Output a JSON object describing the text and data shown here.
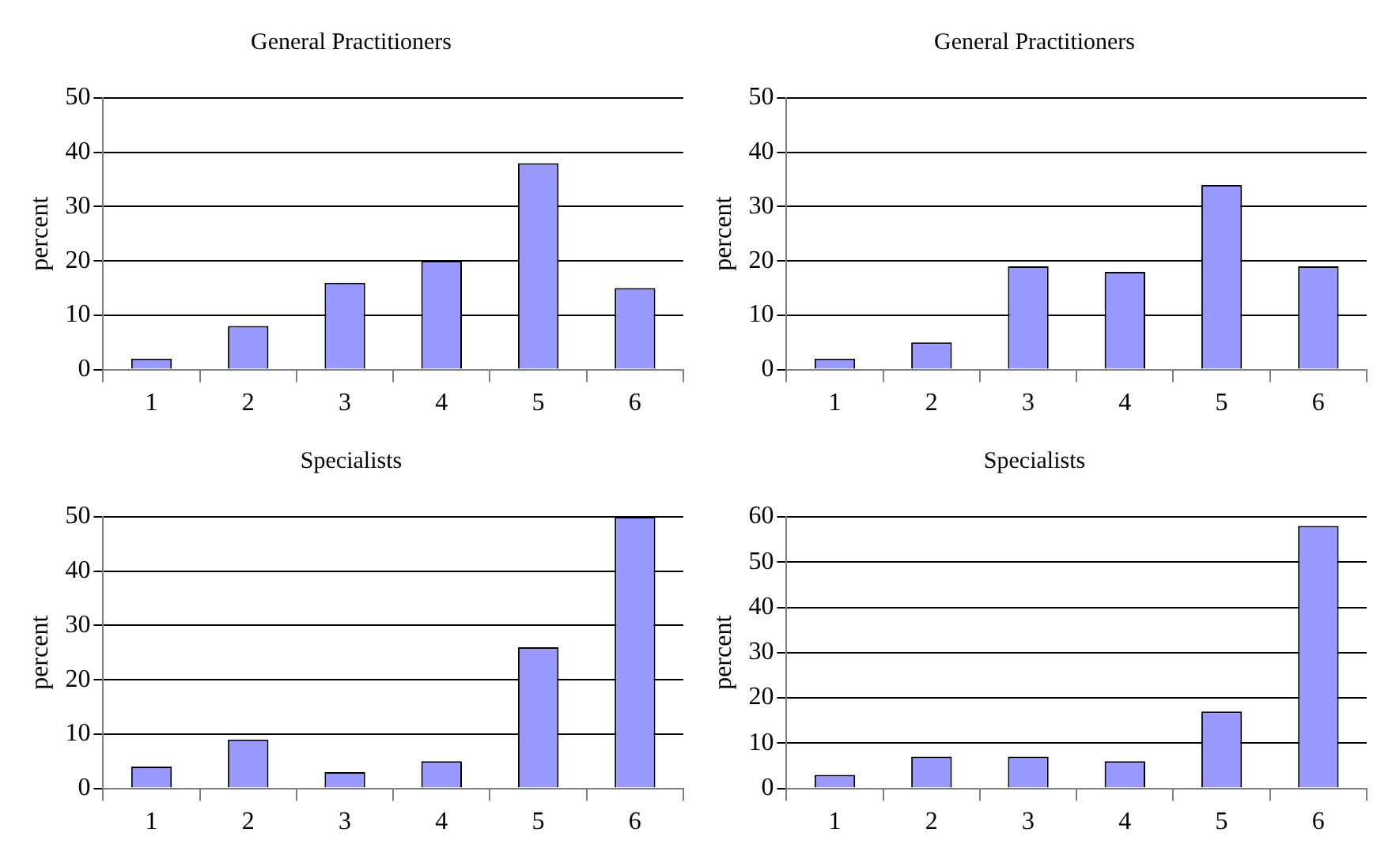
{
  "chart_data": [
    {
      "type": "bar",
      "title": "General Practitioners",
      "ylabel": "percent",
      "categories": [
        "1",
        "2",
        "3",
        "4",
        "5",
        "6"
      ],
      "values": [
        2,
        8,
        16,
        20,
        38,
        15
      ],
      "color": "#9999ff",
      "ylim": [
        0,
        50
      ],
      "yticks": [
        0,
        10,
        20,
        30,
        40,
        50
      ],
      "grid": "y",
      "legend": false
    },
    {
      "type": "bar",
      "title": "General Practitioners",
      "ylabel": "percent",
      "categories": [
        "1",
        "2",
        "3",
        "4",
        "5",
        "6"
      ],
      "values": [
        2,
        5,
        19,
        18,
        34,
        19
      ],
      "color": "#9999ff",
      "ylim": [
        0,
        50
      ],
      "yticks": [
        0,
        10,
        20,
        30,
        40,
        50
      ],
      "grid": "y",
      "legend": false
    },
    {
      "type": "bar",
      "title": "Specialists",
      "ylabel": "percent",
      "categories": [
        "1",
        "2",
        "3",
        "4",
        "5",
        "6"
      ],
      "values": [
        4,
        9,
        3,
        5,
        26,
        50
      ],
      "color": "#9999ff",
      "ylim": [
        0,
        50
      ],
      "yticks": [
        0,
        10,
        20,
        30,
        40,
        50
      ],
      "grid": "y",
      "legend": false
    },
    {
      "type": "bar",
      "title": "Specialists",
      "ylabel": "percent",
      "categories": [
        "1",
        "2",
        "3",
        "4",
        "5",
        "6"
      ],
      "values": [
        3,
        7,
        7,
        6,
        17,
        58
      ],
      "color": "#9999ff",
      "ylim": [
        0,
        60
      ],
      "yticks": [
        0,
        10,
        20,
        30,
        40,
        50,
        60
      ],
      "grid": "y",
      "legend": false
    }
  ]
}
